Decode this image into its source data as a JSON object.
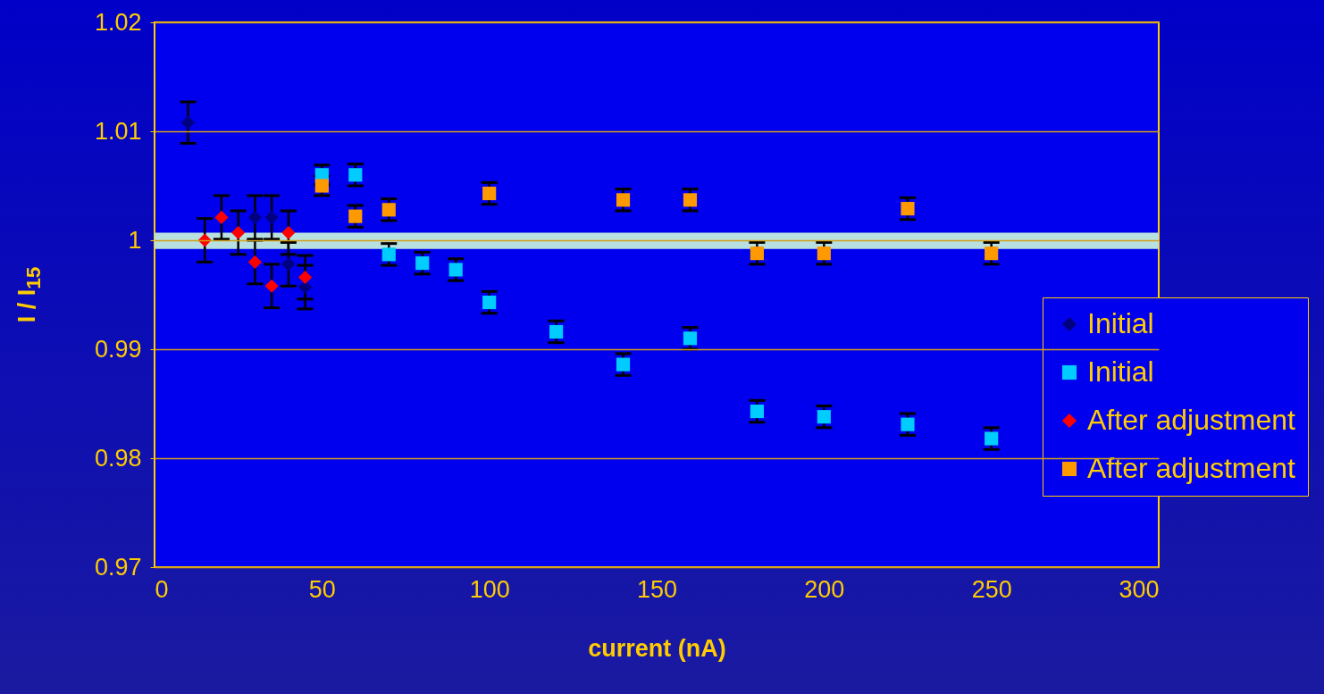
{
  "chart_data": {
    "type": "scatter",
    "xlabel": "current (nA)",
    "ylabel": "I / I$_{15}$",
    "xlim": [
      0,
      300
    ],
    "xticks": [
      0,
      50,
      100,
      150,
      200,
      250,
      300
    ],
    "ylim": [
      0.97,
      1.02
    ],
    "yticks": [
      0.97,
      0.98,
      0.99,
      1,
      1.01,
      1.02
    ],
    "grid": "y",
    "legend": "right",
    "bands": [
      {
        "axis": "y",
        "from": 0.9992,
        "to": 1.0007,
        "color": "#b8e0e0"
      }
    ],
    "series": [
      {
        "name": "Initial",
        "color": "#000080",
        "marker": "diamond",
        "x": [
          10,
          30,
          35,
          40,
          45
        ],
        "values": [
          1.0108,
          1.0021,
          1.0021,
          0.9978,
          0.9957
        ],
        "errors": [
          0.0019,
          0.002,
          0.002,
          0.002,
          0.002
        ]
      },
      {
        "name": "Initial",
        "color": "#00ccff",
        "marker": "square",
        "x": [
          50,
          60,
          70,
          80,
          90,
          100,
          120,
          140,
          160,
          180,
          200,
          225,
          250
        ],
        "values": [
          1.006,
          1.006,
          0.9987,
          0.9979,
          0.9973,
          0.9943,
          0.9916,
          0.9886,
          0.991,
          0.9843,
          0.9838,
          0.9831,
          0.9818
        ],
        "errors": [
          0.0009,
          0.001,
          0.001,
          0.001,
          0.001,
          0.001,
          0.001,
          0.001,
          0.001,
          0.001,
          0.001,
          0.001,
          0.001
        ]
      },
      {
        "name": "After adjustment",
        "color": "#ff0000",
        "marker": "diamond",
        "x": [
          15,
          20,
          25,
          30,
          35,
          40,
          45
        ],
        "values": [
          1.0,
          1.0021,
          1.0007,
          0.998,
          0.9958,
          1.0007,
          0.9966
        ],
        "errors": [
          0.002,
          0.002,
          0.002,
          0.002,
          0.002,
          0.002,
          0.002
        ]
      },
      {
        "name": "After adjustment",
        "color": "#ff9900",
        "marker": "square",
        "x": [
          50,
          60,
          70,
          100,
          140,
          160,
          180,
          200,
          225,
          250
        ],
        "values": [
          1.005,
          1.0022,
          1.0028,
          1.0043,
          1.0037,
          1.0037,
          0.9988,
          0.9988,
          1.0029,
          0.9988
        ],
        "errors": [
          0.0009,
          0.001,
          0.001,
          0.001,
          0.001,
          0.001,
          0.001,
          0.001,
          0.001,
          0.001
        ]
      }
    ]
  }
}
